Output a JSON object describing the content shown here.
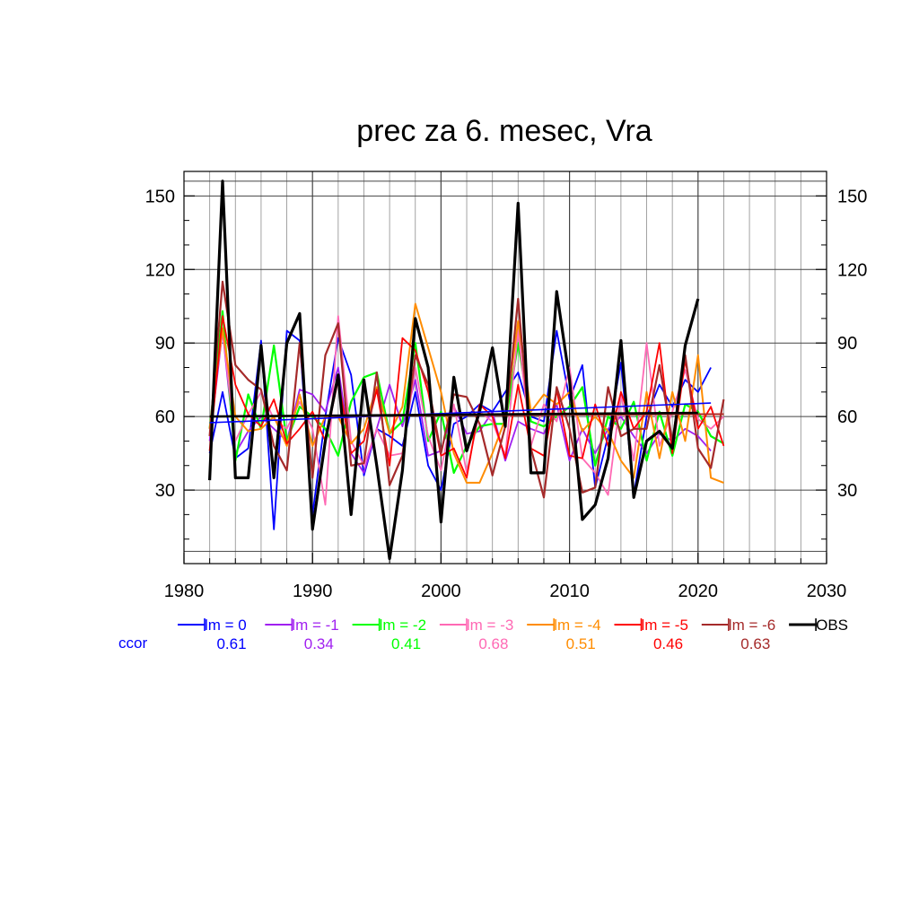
{
  "chart_data": {
    "type": "line",
    "title": "prec za 6. mesec, Vra",
    "xlabel": "",
    "ylabel": "",
    "xlim": [
      1980,
      2030
    ],
    "ylim": [
      0,
      160
    ],
    "x_ticks": [
      1980,
      1990,
      2000,
      2010,
      2020,
      2030
    ],
    "y_ticks": [
      30,
      60,
      90,
      120,
      150
    ],
    "x_minor_step": 2,
    "y_minor_step": 10,
    "grid": true,
    "ccor_label": "ccor",
    "legend_position": "bottom",
    "series": [
      {
        "name": "lm = 0",
        "color": "#0000ff",
        "width": 1.8,
        "ccor": "0.61",
        "x": [
          1982,
          1983,
          1984,
          1985,
          1986,
          1987,
          1988,
          1989,
          1990,
          1991,
          1992,
          1993,
          1994,
          1995,
          1996,
          1997,
          1998,
          1999,
          2000,
          2001,
          2002,
          2003,
          2004,
          2005,
          2006,
          2007,
          2008,
          2009,
          2010,
          2011,
          2012,
          2013,
          2014,
          2015,
          2016,
          2017,
          2018,
          2019,
          2020,
          2021
        ],
        "y": [
          45,
          70,
          43,
          47,
          91,
          14,
          95,
          91,
          20,
          60,
          92,
          77,
          36,
          55,
          52,
          48,
          70,
          40,
          30,
          57,
          60,
          65,
          62,
          70,
          78,
          60,
          58,
          95,
          67,
          81,
          31,
          52,
          82,
          28,
          60,
          73,
          64,
          75,
          70,
          80
        ],
        "trend": [
          [
            1982,
            57.5
          ],
          [
            2021,
            65.5
          ]
        ]
      },
      {
        "name": "lm = -1",
        "color": "#a020f0",
        "width": 1.8,
        "ccor": "0.34",
        "x": [
          1982,
          1983,
          1984,
          1985,
          1986,
          1987,
          1988,
          1989,
          1990,
          1991,
          1992,
          1993,
          1994,
          1995,
          1996,
          1997,
          1998,
          1999,
          2000,
          2001,
          2002,
          2003,
          2004,
          2005,
          2006,
          2007,
          2008,
          2009,
          2010,
          2011,
          2012,
          2013,
          2014,
          2015,
          2016,
          2017,
          2018,
          2019,
          2020,
          2021
        ],
        "y": [
          50,
          95,
          45,
          54,
          60,
          55,
          50,
          71,
          69,
          62,
          80,
          45,
          37,
          55,
          73,
          56,
          75,
          44,
          46,
          64,
          53,
          54,
          62,
          42,
          58,
          55,
          53,
          65,
          42,
          55,
          45,
          55,
          60,
          52,
          45,
          53,
          50,
          55,
          52,
          46
        ],
        "trend": [
          [
            1982,
            60
          ],
          [
            2021,
            61
          ]
        ]
      },
      {
        "name": "lm = -2",
        "color": "#00ff00",
        "width": 2.2,
        "ccor": "0.41",
        "x": [
          1982,
          1983,
          1984,
          1985,
          1986,
          1987,
          1988,
          1989,
          1990,
          1991,
          1992,
          1993,
          1994,
          1995,
          1996,
          1997,
          1998,
          1999,
          2000,
          2001,
          2002,
          2003,
          2004,
          2005,
          2006,
          2007,
          2008,
          2009,
          2010,
          2011,
          2012,
          2013,
          2014,
          2015,
          2016,
          2017,
          2018,
          2019,
          2020,
          2021,
          2022
        ],
        "y": [
          55,
          103,
          42,
          69,
          55,
          89,
          50,
          64,
          60,
          55,
          44,
          66,
          76,
          78,
          53,
          58,
          90,
          50,
          62,
          37,
          48,
          56,
          57,
          57,
          90,
          58,
          56,
          60,
          64,
          72,
          40,
          60,
          55,
          66,
          42,
          62,
          44,
          65,
          62,
          52,
          49
        ],
        "trend": [
          [
            1982,
            60
          ],
          [
            2022,
            61
          ]
        ]
      },
      {
        "name": "lm = -3",
        "color": "#ff69b4",
        "width": 1.8,
        "ccor": "0.68",
        "x": [
          1982,
          1983,
          1984,
          1985,
          1986,
          1987,
          1988,
          1989,
          1990,
          1991,
          1992,
          1993,
          1994,
          1995,
          1996,
          1997,
          1998,
          1999,
          2000,
          2001,
          2002,
          2003,
          2004,
          2005,
          2006,
          2007,
          2008,
          2009,
          2010,
          2011,
          2012,
          2013,
          2014,
          2015,
          2016,
          2017,
          2018,
          2019,
          2020,
          2021,
          2022
        ],
        "y": [
          55,
          95,
          50,
          61,
          70,
          59,
          55,
          66,
          55,
          24,
          101,
          50,
          40,
          55,
          44,
          45,
          80,
          52,
          38,
          65,
          37,
          62,
          58,
          44,
          95,
          48,
          65,
          58,
          80,
          43,
          37,
          28,
          69,
          42,
          90,
          48,
          62,
          79,
          59,
          55,
          60
        ],
        "trend": [
          [
            1982,
            60
          ],
          [
            2022,
            61
          ]
        ]
      },
      {
        "name": "lm = -4",
        "color": "#ff8c00",
        "width": 2.0,
        "ccor": "0.51",
        "x": [
          1982,
          1983,
          1984,
          1985,
          1986,
          1987,
          1988,
          1989,
          1990,
          1991,
          1992,
          1993,
          1994,
          1995,
          1996,
          1997,
          1998,
          1999,
          2000,
          2001,
          2002,
          2003,
          2004,
          2005,
          2006,
          2007,
          2008,
          2009,
          2010,
          2011,
          2012,
          2013,
          2014,
          2015,
          2016,
          2017,
          2018,
          2019,
          2020,
          2021,
          2022
        ],
        "y": [
          55,
          96,
          60,
          54,
          55,
          60,
          48,
          69,
          48,
          60,
          60,
          49,
          55,
          72,
          53,
          64,
          106,
          88,
          70,
          45,
          33,
          33,
          45,
          59,
          99,
          62,
          69,
          65,
          70,
          54,
          60,
          54,
          42,
          35,
          70,
          43,
          70,
          50,
          85,
          35,
          33
        ],
        "trend": [
          [
            1982,
            60
          ],
          [
            2022,
            61
          ]
        ]
      },
      {
        "name": "lm = -5",
        "color": "#ff0000",
        "width": 1.8,
        "ccor": "0.46",
        "x": [
          1982,
          1983,
          1984,
          1985,
          1986,
          1987,
          1988,
          1989,
          1990,
          1991,
          1992,
          1993,
          1994,
          1995,
          1996,
          1997,
          1998,
          1999,
          2000,
          2001,
          2002,
          2003,
          2004,
          2005,
          2006,
          2007,
          2008,
          2009,
          2010,
          2011,
          2012,
          2013,
          2014,
          2015,
          2016,
          2017,
          2018,
          2019,
          2020,
          2021,
          2022
        ],
        "y": [
          46,
          101,
          73,
          61,
          56,
          67,
          49,
          55,
          62,
          50,
          75,
          45,
          50,
          71,
          40,
          92,
          87,
          70,
          44,
          47,
          35,
          65,
          60,
          43,
          73,
          47,
          44,
          71,
          44,
          43,
          65,
          48,
          70,
          55,
          62,
          90,
          45,
          83,
          55,
          64,
          48
        ],
        "trend": [
          [
            1982,
            60
          ],
          [
            2022,
            61
          ]
        ]
      },
      {
        "name": "lm = -6",
        "color": "#a52a2a",
        "width": 2.2,
        "ccor": "0.63",
        "x": [
          1982,
          1983,
          1984,
          1985,
          1986,
          1987,
          1988,
          1989,
          1990,
          1991,
          1992,
          1993,
          1994,
          1995,
          1996,
          1997,
          1998,
          1999,
          2000,
          2001,
          2002,
          2003,
          2004,
          2005,
          2006,
          2007,
          2008,
          2009,
          2010,
          2011,
          2012,
          2013,
          2014,
          2015,
          2016,
          2017,
          2018,
          2019,
          2020,
          2021,
          2022
        ],
        "y": [
          52,
          115,
          81,
          75,
          71,
          48,
          38,
          90,
          35,
          85,
          98,
          40,
          41,
          78,
          32,
          44,
          85,
          73,
          45,
          69,
          68,
          57,
          36,
          56,
          108,
          47,
          27,
          72,
          55,
          29,
          31,
          72,
          52,
          55,
          55,
          81,
          50,
          85,
          47,
          39,
          67
        ],
        "trend": [
          [
            1982,
            60
          ],
          [
            2022,
            61
          ]
        ]
      },
      {
        "name": "OBS",
        "color": "#000000",
        "width": 3.2,
        "ccor": "",
        "x": [
          1982,
          1983,
          1984,
          1985,
          1986,
          1987,
          1988,
          1989,
          1990,
          1991,
          1992,
          1993,
          1994,
          1995,
          1996,
          1997,
          1998,
          1999,
          2000,
          2001,
          2002,
          2003,
          2004,
          2005,
          2006,
          2007,
          2008,
          2009,
          2010,
          2011,
          2012,
          2013,
          2014,
          2015,
          2016,
          2017,
          2018,
          2019,
          2020
        ],
        "y": [
          34,
          156,
          35,
          35,
          89,
          35,
          90,
          102,
          14,
          50,
          77,
          20,
          75,
          40,
          2,
          38,
          100,
          80,
          17,
          76,
          46,
          62,
          88,
          56,
          147,
          37,
          37,
          111,
          75,
          18,
          24,
          43,
          91,
          27,
          50,
          54,
          47,
          89,
          108
        ],
        "trend": [
          [
            1982,
            60
          ],
          [
            2020,
            61.5
          ]
        ]
      }
    ]
  }
}
